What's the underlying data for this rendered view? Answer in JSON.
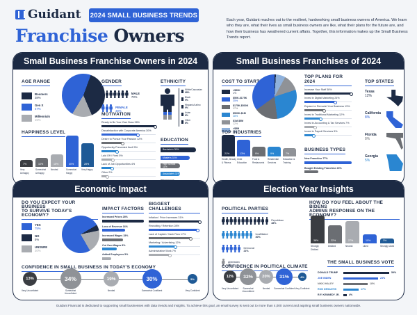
{
  "header": {
    "brand": "Guidant",
    "badge": "2024 SMALL BUSINESS TRENDS",
    "title_part1": "Franchise",
    "title_part2": "Owners",
    "intro": "Each year, Guidant reaches out to the resilient, hardworking small business owners of America. We learn who they are, what their lives as small business owners are like, what their plans for the future are, and how their business has weathered current affairs. Together, this information makes up the Small Business Trends report."
  },
  "panels": {
    "owners": {
      "title": "Small Business Franchise Owners in 2024",
      "age_range": {
        "heading": "AGE RANGE",
        "items": [
          {
            "label": "Boomers",
            "value": "38%",
            "color": "#1c2a44"
          },
          {
            "label": "Gen X",
            "value": "47%",
            "color": "#2f63d6"
          },
          {
            "label": "Millennials",
            "value": "15%",
            "color": "#a9acb1"
          }
        ]
      },
      "happiness": {
        "heading": "HAPPINESS LEVEL",
        "items": [
          {
            "label": "Very Unhappy",
            "value": "7%",
            "color": "#3a3d42",
            "h": 10
          },
          {
            "label": "Somewhat Unhappy",
            "value": "10%",
            "color": "#6b6e73",
            "h": 13
          },
          {
            "label": "Neutral",
            "value": "15%",
            "color": "#a9acb1",
            "h": 18
          },
          {
            "label": "Somewhat Happy",
            "value": "40%",
            "color": "#2f63d6",
            "h": 45
          },
          {
            "label": "Very Happy",
            "value": "28%",
            "color": "#1f5a96",
            "h": 34
          }
        ]
      },
      "gender": {
        "heading": "GENDER",
        "male": {
          "label": "MALE",
          "value": "70%"
        },
        "female": {
          "label": "FEMALE",
          "value": "30%"
        }
      },
      "motivation": {
        "heading": "MOTIVATION",
        "items": [
          {
            "label": "Ready to Be Your Own Boss 38%",
            "pct": 100,
            "color": "#1c2a44"
          },
          {
            "label": "Dissatisfaction with Corporate America 30%",
            "pct": 68,
            "color": "#2f63d6"
          },
          {
            "label": "Desire to Pursue Your Passion 12%",
            "pct": 40,
            "color": "#6b6e73"
          },
          {
            "label": "Opportunity Presented Itself 9%",
            "pct": 30,
            "color": "#2a86d1"
          },
          {
            "label": "Laid Off / Fired 5%",
            "pct": 22,
            "color": "#a9acb1"
          },
          {
            "label": "Lack of Job Opportunities 4%",
            "pct": 20,
            "color": "#2a86d1"
          },
          {
            "label": "Other 2%",
            "pct": 12,
            "color": "#a9acb1"
          }
        ]
      },
      "ethnicity": {
        "heading": "ETHNICITY",
        "items": [
          {
            "label": "White/Caucasian",
            "value": "68%"
          },
          {
            "label": "Black",
            "value": "9%"
          },
          {
            "label": "Hispanic/Latino",
            "value": "9%"
          },
          {
            "label": "Asian",
            "value": "6%"
          },
          {
            "label": "Other",
            "value": "8%"
          }
        ]
      },
      "education": {
        "heading": "EDUCATION",
        "items": [
          {
            "label": "Bachelor's 39%",
            "w": 78,
            "color": "#1c2a44"
          },
          {
            "label": "Master's 31%",
            "w": 64,
            "color": "#2f63d6"
          },
          {
            "label": "High School 11%",
            "w": 42,
            "color": "#6b6e73"
          },
          {
            "label": "Associate's 11%",
            "w": 42,
            "color": "#2a86d1"
          },
          {
            "label": "Doctorate 8%",
            "w": 32,
            "color": "#8f9297"
          }
        ]
      }
    },
    "franchises": {
      "title": "Small Business Franchises of 2024",
      "cost_to_start": {
        "heading": "COST TO START",
        "items": [
          {
            "label": "<$50K",
            "value": "1%",
            "color": "#1c2a44"
          },
          {
            "label": "$50K-$175K",
            "value": "35%",
            "color": "#2f63d6"
          },
          {
            "label": "$175K-$500K",
            "value": "17%",
            "color": "#6b6e73"
          },
          {
            "label": "$500K-$1M",
            "value": "28%",
            "color": "#2a86d1"
          },
          {
            "label": "$1M-$5M",
            "value": "12%",
            "color": "#8f9297"
          },
          {
            "label": ">$5M",
            "value": "7%",
            "color": "#8fb1db"
          }
        ]
      },
      "top_industries": {
        "heading": "TOP INDUSTRIES",
        "items": [
          {
            "label": "Health, Beauty & Fitness",
            "value": "21%",
            "color": "#1c2a44",
            "h": 31
          },
          {
            "label": "Child Education",
            "value": "13%",
            "color": "#2f63d6",
            "h": 24
          },
          {
            "label": "Food & Restaurants",
            "value": "9%",
            "color": "#6b6e73",
            "h": 14
          },
          {
            "label": "Residential Services",
            "value": "9%",
            "color": "#2a86d1",
            "h": 14
          },
          {
            "label": "Education & Training",
            "value": "7%",
            "color": "#8f9297",
            "h": 12
          }
        ]
      },
      "top_plans": {
        "heading": "TOP PLANS FOR 2024",
        "items": [
          {
            "label": "Increase Your Staff 38%",
            "pct": 100,
            "color": "#1c2a44"
          },
          {
            "label": "Invest in Digital Marketing 24%",
            "pct": 66,
            "color": "#2f63d6"
          },
          {
            "label": "Expand or Remodel Your Business 13%",
            "pct": 42,
            "color": "#6b6e73"
          },
          {
            "label": "Invest in Traditional Marketing 12%",
            "pct": 36,
            "color": "#2a86d1"
          },
          {
            "label": "Invest in Accounting & Tax Services 7%",
            "pct": 24,
            "color": "#a9acb1"
          },
          {
            "label": "Invest in Payroll Services 5%",
            "pct": 20,
            "color": "#2a86d1"
          }
        ]
      },
      "business_types": {
        "heading": "BUSINESS TYPES",
        "items": [
          {
            "label": "New Franchise 77%",
            "w": 100,
            "color": "#2f63d6"
          },
          {
            "label": "Bought Existing Franchise 23%",
            "w": 30,
            "color": "#6b6e73"
          }
        ]
      },
      "top_states": {
        "heading": "TOP STATES",
        "items": [
          {
            "label": "Texas",
            "value": "12%",
            "color": "#1c2a44"
          },
          {
            "label": "California",
            "value": "8%",
            "color": "#2f63d6"
          },
          {
            "label": "Florida",
            "value": "8%",
            "color": "#6b6e73"
          },
          {
            "label": "Georgia",
            "value": "5%",
            "color": "#2a86d1"
          }
        ]
      }
    },
    "economy": {
      "title": "Economic Impact",
      "survive": {
        "heading_line1": "DO YOU EXPECT YOUR BUSINESS",
        "heading_line2": "TO SURVIVE TODAY'S ECONOMY?",
        "items": [
          {
            "label": "YES",
            "value": "75%",
            "color": "#2f63d6"
          },
          {
            "label": "NO",
            "value": "5%",
            "color": "#1c2a44"
          },
          {
            "label": "UNSURE",
            "value": "20%",
            "color": "#a9acb1"
          }
        ]
      },
      "impact_factors": {
        "heading": "IMPACT FACTORS",
        "items": [
          {
            "label": "Increased Prices 28%",
            "w": 100,
            "color": "#1c2a44"
          },
          {
            "label": "Loss of Revenue 16%",
            "w": 55,
            "color": "#2f63d6"
          },
          {
            "label": "Increased Wages 15%",
            "w": 50,
            "color": "#6b6e73"
          },
          {
            "label": "Cut Own Wages 8%",
            "w": 35,
            "color": "#2a86d1"
          },
          {
            "label": "Added Employees 5%",
            "w": 22,
            "color": "#a9acb1"
          }
        ]
      },
      "challenges": {
        "heading": "BIGGEST CHALLENGES",
        "items": [
          {
            "label": "Inflation / Price Increases 31%",
            "pct": 100,
            "color": "#1c2a44"
          },
          {
            "label": "Recruiting / Retention 28%",
            "pct": 96,
            "color": "#2f63d6"
          },
          {
            "label": "Lack of Capital / Cash Flow 17%",
            "pct": 82,
            "color": "#6b6e73"
          },
          {
            "label": "Marketing / Advertising 12%",
            "pct": 53,
            "color": "#2a86d1"
          },
          {
            "label": "Administrative Work 7%",
            "pct": 42,
            "color": "#a9acb1"
          }
        ]
      },
      "confidence": {
        "heading": "CONFIDENCE IN SMALL BUSINESS IN TODAY'S ECONOMY",
        "items": [
          {
            "label": "Very Unconfident",
            "value": "13%",
            "color": "#3a3d42",
            "d": 20
          },
          {
            "label": "Somewhat Unconfident",
            "value": "34%",
            "color": "#8f9297",
            "d": 30
          },
          {
            "label": "Neutral",
            "value": "19%",
            "color": "#a9acb1",
            "d": 22
          },
          {
            "label": "Somewhat Confident",
            "value": "30%",
            "color": "#2f63d6",
            "d": 28
          },
          {
            "label": "Very Confident",
            "value": "5%",
            "color": "#1f5a96",
            "d": 14
          }
        ]
      }
    },
    "election": {
      "title": "Election Year Insights",
      "parties": {
        "heading": "POLITICAL PARTIES",
        "items": [
          {
            "label": "Republican",
            "value": "48%",
            "count": 12,
            "color": "#1c2a44"
          },
          {
            "label": "Unaffiliated",
            "value": "30%",
            "count": 8,
            "color": "#2a86d1"
          },
          {
            "label": "Democrat",
            "value": "21%",
            "count": 5,
            "color": "#2f63d6"
          },
          {
            "label": "Libertarian",
            "value": "2%",
            "count": 1,
            "color": "#8f9297"
          }
        ]
      },
      "biden": {
        "heading_line1": "HOW DO YOU FEEL ABOUT THE BIDENS",
        "heading_line2": "ADMINS RESPONSE ON THE ECONOMY?",
        "items": [
          {
            "label": "Strongly Disliked",
            "value": "38%",
            "color": "#3a3d42",
            "h": 40
          },
          {
            "label": "Disliked",
            "value": "22%",
            "color": "#6b6e73",
            "h": 26
          },
          {
            "label": "Neutral",
            "value": "27%",
            "color": "#a9acb1",
            "h": 32
          },
          {
            "label": "Liked",
            "value": "10%",
            "color": "#2f63d6",
            "h": 13
          },
          {
            "label": "Strongly Liked",
            "value": "3%",
            "color": "#1f5a96",
            "h": 7
          }
        ]
      },
      "confidence": {
        "heading": "CONFIDENCE IN POLITICAL CLIMATE",
        "items": [
          {
            "label": "Very Unconfident",
            "value": "12%",
            "color": "#3a3d42",
            "d": 18
          },
          {
            "label": "Somewhat Unconfident",
            "value": "32%",
            "color": "#8f9297",
            "d": 24
          },
          {
            "label": "Neutral",
            "value": "20%",
            "color": "#a9acb1",
            "d": 20
          },
          {
            "label": "Somewhat Confident",
            "value": "31%",
            "color": "#2f63d6",
            "d": 24
          },
          {
            "label": "Very Confident",
            "value": "4%",
            "color": "#1f5a96",
            "d": 12
          }
        ]
      },
      "vote": {
        "heading": "THE SMALL BUSINESS VOTE",
        "items": [
          {
            "label": "DONALD TRUMP",
            "value": "59%",
            "w": 66,
            "color": "#1c2a44"
          },
          {
            "label": "JOE BIDEN",
            "value": "23%",
            "w": 50,
            "color": "#2f63d6"
          },
          {
            "label": "NIKKI HALEY",
            "value": "18%",
            "w": 35,
            "color": "#6b6e73"
          },
          {
            "label": "RON DESANTIS",
            "value": "17%",
            "w": 22,
            "color": "#2a86d1"
          },
          {
            "label": "R.F. KENNEDY JR.",
            "value": "4%",
            "w": 5,
            "color": "#1c2a44"
          }
        ]
      }
    }
  },
  "footer": "Guidant Financial is dedicated to supporting small businesses with data trends and insights. To achieve this goal, an email survey is sent out to more than 4,000 current and aspiring small business owners nationwide."
}
